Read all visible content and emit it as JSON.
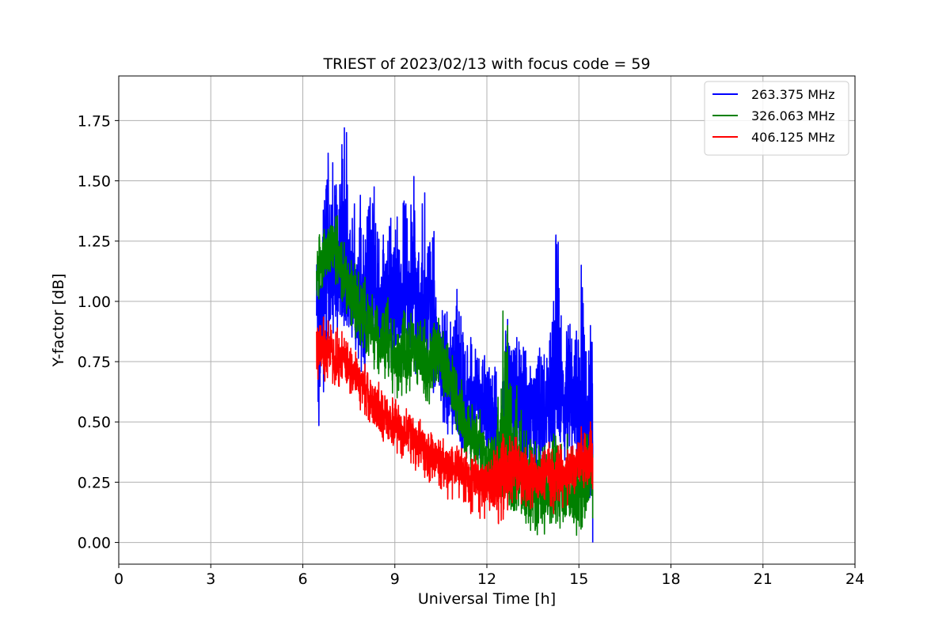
{
  "chart_data": {
    "type": "line",
    "title": "TRIEST of 2023/02/13 with focus code = 59",
    "xlabel": "Universal Time [h]",
    "ylabel": "Y-factor [dB]",
    "xlim": [
      0,
      24
    ],
    "ylim": [
      -0.09,
      1.935
    ],
    "xticks": [
      0,
      3,
      6,
      9,
      12,
      15,
      18,
      21,
      24
    ],
    "xtick_labels": [
      "0",
      "3",
      "6",
      "9",
      "12",
      "15",
      "18",
      "21",
      "24"
    ],
    "yticks": [
      0.0,
      0.25,
      0.5,
      0.75,
      1.0,
      1.25,
      1.5,
      1.75
    ],
    "ytick_labels": [
      "0.00",
      "0.25",
      "0.50",
      "0.75",
      "1.00",
      "1.25",
      "1.50",
      "1.75"
    ],
    "grid": true,
    "legend_position": "top-right",
    "series": [
      {
        "name": "263.375 MHz",
        "color": "#0000ff",
        "x": [
          6.45,
          6.6,
          6.75,
          6.9,
          7.05,
          7.2,
          7.35,
          7.5,
          7.65,
          7.8,
          7.95,
          8.1,
          8.25,
          8.4,
          8.55,
          8.7,
          8.85,
          9.0,
          9.15,
          9.3,
          9.45,
          9.6,
          9.75,
          9.9,
          10.05,
          10.2,
          10.35,
          10.5,
          10.65,
          10.8,
          10.95,
          11.1,
          11.25,
          11.4,
          11.55,
          11.7,
          11.85,
          12.0,
          12.15,
          12.3,
          12.45,
          12.6,
          12.75,
          12.9,
          13.05,
          13.2,
          13.35,
          13.5,
          13.65,
          13.8,
          13.95,
          14.1,
          14.25,
          14.4,
          14.55,
          14.7,
          14.85,
          15.0,
          15.15,
          15.3,
          15.45
        ],
        "y_mean": [
          0.85,
          1.0,
          1.08,
          1.1,
          1.08,
          1.15,
          1.12,
          1.1,
          1.08,
          1.0,
          0.95,
          1.02,
          1.05,
          1.0,
          0.98,
          1.02,
          0.95,
          0.98,
          1.0,
          1.02,
          1.0,
          1.05,
          1.0,
          0.95,
          0.95,
          0.88,
          0.8,
          0.75,
          0.7,
          0.7,
          0.65,
          0.6,
          0.58,
          0.6,
          0.55,
          0.6,
          0.55,
          0.55,
          0.5,
          0.45,
          0.35,
          0.6,
          0.55,
          0.5,
          0.65,
          0.55,
          0.55,
          0.55,
          0.5,
          0.5,
          0.55,
          0.55,
          0.6,
          0.6,
          0.55,
          0.65,
          0.55,
          0.55,
          0.55,
          0.45,
          0.4
        ],
        "y_max": [
          1.2,
          1.35,
          1.63,
          1.6,
          1.55,
          1.65,
          1.85,
          1.55,
          1.5,
          1.48,
          1.4,
          1.45,
          1.55,
          1.4,
          1.3,
          1.25,
          1.45,
          1.4,
          1.3,
          1.55,
          1.4,
          1.77,
          1.45,
          1.5,
          1.4,
          1.38,
          1.2,
          1.05,
          1.0,
          1.05,
          1.05,
          1.1,
          0.9,
          0.85,
          0.9,
          0.85,
          0.8,
          0.75,
          0.7,
          0.85,
          0.55,
          1.0,
          0.85,
          0.85,
          1.0,
          0.85,
          0.85,
          0.8,
          0.85,
          0.9,
          0.9,
          1.0,
          1.44,
          1.05,
          0.95,
          1.0,
          0.85,
          1.15,
          1.15,
          0.9,
          0.92
        ],
        "y_min": [
          0.42,
          0.55,
          0.7,
          0.75,
          0.85,
          0.85,
          0.85,
          0.8,
          0.8,
          0.7,
          0.65,
          0.75,
          0.78,
          0.75,
          0.7,
          0.75,
          0.65,
          0.7,
          0.7,
          0.7,
          0.72,
          0.7,
          0.7,
          0.65,
          0.7,
          0.6,
          0.55,
          0.5,
          0.45,
          0.45,
          0.4,
          0.35,
          0.3,
          0.35,
          0.3,
          0.35,
          0.3,
          0.3,
          0.25,
          0.2,
          0.2,
          0.3,
          0.25,
          0.25,
          0.35,
          0.25,
          0.3,
          0.25,
          0.25,
          0.25,
          0.3,
          0.25,
          0.3,
          0.35,
          0.3,
          0.35,
          0.3,
          0.3,
          0.3,
          0.2,
          0.0
        ]
      },
      {
        "name": "326.063 MHz",
        "color": "#008000",
        "x": [
          6.45,
          6.6,
          6.75,
          6.9,
          7.05,
          7.2,
          7.35,
          7.5,
          7.65,
          7.8,
          7.95,
          8.1,
          8.25,
          8.4,
          8.55,
          8.7,
          8.85,
          9.0,
          9.15,
          9.3,
          9.45,
          9.6,
          9.75,
          9.9,
          10.05,
          10.2,
          10.35,
          10.5,
          10.65,
          10.8,
          10.95,
          11.1,
          11.25,
          11.4,
          11.55,
          11.7,
          11.85,
          12.0,
          12.15,
          12.3,
          12.45,
          12.6,
          12.75,
          12.9,
          13.05,
          13.2,
          13.35,
          13.5,
          13.65,
          13.8,
          13.95,
          14.1,
          14.25,
          14.4,
          14.55,
          14.7,
          14.85,
          15.0,
          15.15,
          15.3,
          15.45
        ],
        "y_mean": [
          1.15,
          1.15,
          1.2,
          1.25,
          1.22,
          1.15,
          1.1,
          1.05,
          1.02,
          0.98,
          0.95,
          0.9,
          0.9,
          0.88,
          0.85,
          0.82,
          0.8,
          0.78,
          0.75,
          0.78,
          0.75,
          0.78,
          0.8,
          0.75,
          0.72,
          0.78,
          0.8,
          0.75,
          0.7,
          0.65,
          0.6,
          0.55,
          0.5,
          0.45,
          0.42,
          0.4,
          0.38,
          0.35,
          0.33,
          0.3,
          0.35,
          0.35,
          0.3,
          0.25,
          0.3,
          0.25,
          0.22,
          0.22,
          0.2,
          0.2,
          0.2,
          0.2,
          0.22,
          0.2,
          0.2,
          0.2,
          0.2,
          0.18,
          0.2,
          0.25,
          0.3
        ],
        "y_max": [
          1.34,
          1.28,
          1.35,
          1.38,
          1.39,
          1.32,
          1.3,
          1.22,
          1.2,
          1.15,
          1.12,
          1.08,
          1.05,
          1.05,
          1.0,
          1.05,
          0.98,
          0.95,
          0.92,
          1.0,
          0.95,
          0.95,
          0.98,
          0.95,
          0.9,
          0.92,
          0.96,
          0.9,
          0.85,
          0.8,
          0.75,
          0.7,
          0.65,
          0.6,
          0.6,
          0.55,
          0.55,
          0.5,
          0.5,
          0.45,
          1.02,
          0.9,
          1.07,
          0.65,
          0.7,
          0.55,
          0.5,
          0.5,
          0.45,
          0.45,
          0.45,
          0.45,
          0.5,
          0.45,
          0.45,
          0.45,
          0.45,
          0.4,
          0.45,
          0.5,
          0.55
        ],
        "y_min": [
          1.0,
          1.02,
          1.05,
          1.1,
          1.05,
          1.0,
          0.95,
          0.9,
          0.85,
          0.82,
          0.78,
          0.75,
          0.72,
          0.7,
          0.68,
          0.65,
          0.62,
          0.6,
          0.6,
          0.62,
          0.6,
          0.62,
          0.62,
          0.58,
          0.55,
          0.6,
          0.62,
          0.58,
          0.55,
          0.5,
          0.45,
          0.4,
          0.35,
          0.3,
          0.28,
          0.25,
          0.25,
          0.22,
          0.2,
          0.18,
          0.15,
          0.15,
          0.15,
          0.1,
          0.12,
          0.08,
          0.05,
          0.05,
          0.0,
          0.02,
          0.05,
          0.02,
          0.05,
          0.03,
          0.05,
          0.05,
          0.03,
          0.02,
          0.03,
          0.05,
          0.1
        ]
      },
      {
        "name": "406.125 MHz",
        "color": "#ff0000",
        "x": [
          6.45,
          6.6,
          6.75,
          6.9,
          7.05,
          7.2,
          7.35,
          7.5,
          7.65,
          7.8,
          7.95,
          8.1,
          8.25,
          8.4,
          8.55,
          8.7,
          8.85,
          9.0,
          9.15,
          9.3,
          9.45,
          9.6,
          9.75,
          9.9,
          10.05,
          10.2,
          10.35,
          10.5,
          10.65,
          10.8,
          10.95,
          11.1,
          11.25,
          11.4,
          11.55,
          11.7,
          11.85,
          12.0,
          12.15,
          12.3,
          12.45,
          12.6,
          12.75,
          12.9,
          13.05,
          13.2,
          13.35,
          13.5,
          13.65,
          13.8,
          13.95,
          14.1,
          14.25,
          14.4,
          14.55,
          14.7,
          14.85,
          15.0,
          15.15,
          15.3,
          15.45
        ],
        "y_mean": [
          0.78,
          0.8,
          0.78,
          0.8,
          0.77,
          0.75,
          0.75,
          0.72,
          0.7,
          0.67,
          0.65,
          0.62,
          0.58,
          0.56,
          0.54,
          0.52,
          0.5,
          0.5,
          0.48,
          0.46,
          0.45,
          0.43,
          0.42,
          0.4,
          0.38,
          0.37,
          0.35,
          0.34,
          0.32,
          0.32,
          0.3,
          0.3,
          0.28,
          0.27,
          0.26,
          0.26,
          0.25,
          0.25,
          0.25,
          0.26,
          0.27,
          0.28,
          0.3,
          0.32,
          0.3,
          0.3,
          0.28,
          0.26,
          0.25,
          0.26,
          0.28,
          0.27,
          0.26,
          0.28,
          0.28,
          0.3,
          0.3,
          0.32,
          0.32,
          0.34,
          0.35
        ],
        "y_max": [
          0.92,
          0.95,
          0.92,
          0.93,
          0.9,
          0.88,
          0.87,
          0.85,
          0.8,
          0.78,
          0.76,
          0.72,
          0.7,
          0.68,
          0.65,
          0.62,
          0.6,
          0.62,
          0.58,
          0.56,
          0.55,
          0.53,
          0.52,
          0.5,
          0.48,
          0.47,
          0.45,
          0.44,
          0.42,
          0.42,
          0.4,
          0.4,
          0.38,
          0.37,
          0.36,
          0.36,
          0.35,
          0.36,
          0.38,
          0.42,
          0.45,
          0.5,
          0.47,
          0.48,
          0.45,
          0.45,
          0.42,
          0.4,
          0.38,
          0.4,
          0.42,
          0.41,
          0.4,
          0.45,
          0.42,
          0.45,
          0.45,
          0.48,
          0.48,
          0.5,
          0.5
        ],
        "y_min": [
          0.65,
          0.66,
          0.64,
          0.66,
          0.63,
          0.62,
          0.62,
          0.59,
          0.58,
          0.55,
          0.52,
          0.5,
          0.46,
          0.45,
          0.42,
          0.4,
          0.38,
          0.37,
          0.35,
          0.34,
          0.33,
          0.3,
          0.28,
          0.27,
          0.25,
          0.23,
          0.22,
          0.2,
          0.18,
          0.18,
          0.17,
          0.16,
          0.14,
          0.12,
          0.1,
          0.1,
          0.1,
          0.1,
          0.1,
          0.08,
          0.0,
          0.12,
          0.15,
          0.18,
          0.16,
          0.15,
          0.14,
          0.12,
          0.12,
          0.14,
          0.14,
          0.12,
          0.12,
          0.14,
          0.15,
          0.16,
          0.16,
          0.18,
          0.18,
          0.2,
          0.22
        ]
      }
    ]
  }
}
